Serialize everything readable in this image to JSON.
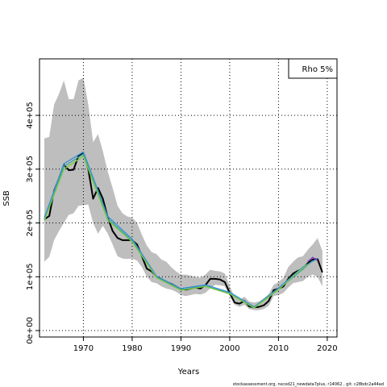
{
  "chart_data": {
    "type": "line",
    "xlabel": "Years",
    "ylabel": "SSB",
    "xlim": [
      1961,
      2022
    ],
    "ylim": [
      -12000,
      505000
    ],
    "grid": true,
    "x_ticks": [
      1970,
      1980,
      1990,
      2000,
      2010,
      2020
    ],
    "x_tick_labels": [
      "1970",
      "1980",
      "1990",
      "2000",
      "2010",
      "2020"
    ],
    "y_ticks": [
      0,
      100000,
      200000,
      300000,
      400000
    ],
    "y_tick_labels": [
      "0e+00",
      "1e+05",
      "2e+05",
      "3e+05",
      "4e+05"
    ],
    "legend": {
      "text": "Rho 5%",
      "placement": "top-right"
    },
    "footnote": "stockassessment.org, nscod21_newdata7plus, r14062 , git: c28bdc2a44ad",
    "band_color": "#bebebe",
    "confidence_band": {
      "x": [
        1962,
        1963,
        1964,
        1965,
        1966,
        1967,
        1968,
        1969,
        1970,
        1971,
        1972,
        1973,
        1974,
        1975,
        1976,
        1977,
        1978,
        1979,
        1980,
        1981,
        1982,
        1983,
        1984,
        1985,
        1986,
        1987,
        1988,
        1989,
        1990,
        1991,
        1992,
        1993,
        1994,
        1995,
        1996,
        1997,
        1998,
        1999,
        2000,
        2001,
        2002,
        2003,
        2004,
        2005,
        2006,
        2007,
        2008,
        2009,
        2010,
        2011,
        2012,
        2013,
        2014,
        2015,
        2016,
        2017,
        2018,
        2019
      ],
      "lower": [
        128000,
        137000,
        168000,
        185000,
        200000,
        215000,
        218000,
        232000,
        233000,
        234000,
        200000,
        180000,
        195000,
        180000,
        160000,
        138000,
        134000,
        133000,
        134000,
        130000,
        118000,
        100000,
        90000,
        88000,
        82000,
        78000,
        76000,
        72000,
        66000,
        64000,
        66000,
        68000,
        67000,
        70000,
        78000,
        85000,
        84000,
        82000,
        65000,
        48000,
        44000,
        48000,
        40000,
        38000,
        38000,
        40000,
        46000,
        64000,
        66000,
        70000,
        80000,
        88000,
        90000,
        92000,
        100000,
        104000,
        100000,
        82000
      ],
      "upper": [
        357000,
        360000,
        420000,
        440000,
        465000,
        430000,
        430000,
        465000,
        470000,
        420000,
        350000,
        365000,
        333000,
        295000,
        265000,
        232000,
        218000,
        212000,
        210000,
        200000,
        178000,
        158000,
        146000,
        142000,
        132000,
        128000,
        118000,
        110000,
        104000,
        104000,
        102000,
        100000,
        98000,
        104000,
        113000,
        111000,
        110000,
        106000,
        82000,
        62000,
        57000,
        63000,
        54000,
        52000,
        54000,
        60000,
        68000,
        85000,
        90000,
        98000,
        118000,
        128000,
        136000,
        138000,
        150000,
        160000,
        172000,
        148000
      ]
    },
    "series": [
      {
        "color": "#000000",
        "x": [
          1962,
          1963,
          1964,
          1965,
          1966,
          1967,
          1968,
          1969,
          1970,
          1971,
          1972,
          1973,
          1974,
          1975,
          1976,
          1977,
          1978,
          1979,
          1980,
          1981,
          1982,
          1983,
          1984,
          1985,
          1986,
          1987,
          1988,
          1989,
          1990,
          1991,
          1992,
          1993,
          1994,
          1995,
          1996,
          1997,
          1998,
          1999,
          2000,
          2001,
          2002,
          2003,
          2004,
          2005,
          2006,
          2007,
          2008,
          2009,
          2010,
          2011,
          2012,
          2013,
          2014,
          2015,
          2016,
          2017,
          2018,
          2019
        ],
        "values": [
          207000,
          213000,
          260000,
          283000,
          308000,
          298000,
          299000,
          325000,
          330000,
          300000,
          245000,
          265000,
          245000,
          210000,
          185000,
          172000,
          168000,
          168000,
          168000,
          160000,
          138000,
          115000,
          110000,
          100000,
          96000,
          90000,
          87000,
          82000,
          77000,
          76000,
          78000,
          80000,
          78000,
          84000,
          96000,
          96000,
          95000,
          90000,
          70000,
          52000,
          50000,
          55000,
          45000,
          43000,
          44000,
          47000,
          55000,
          75000,
          78000,
          82000,
          96000,
          106000,
          111000,
          115000,
          125000,
          132000,
          133000,
          108000
        ]
      },
      {
        "color": "#3a8fd4",
        "x": [
          1962,
          1966,
          1970,
          1975,
          1980,
          1985,
          1990,
          1995,
          2000,
          2005,
          2010,
          2015,
          2018
        ],
        "values": [
          210000,
          310000,
          332000,
          212000,
          170000,
          101000,
          78000,
          85000,
          71000,
          44000,
          79000,
          118000,
          134000
        ]
      },
      {
        "color": "#3aa5a0",
        "x": [
          1962,
          1966,
          1970,
          1975,
          1980,
          1985,
          1990,
          1995,
          2000,
          2005,
          2010,
          2015,
          2017
        ],
        "values": [
          206000,
          305000,
          328000,
          208000,
          167000,
          99000,
          76000,
          83000,
          69000,
          43000,
          77000,
          114000,
          130000
        ]
      },
      {
        "color": "#7ac943",
        "x": [
          1962,
          1966,
          1970,
          1975,
          1980,
          1985,
          1990,
          1995,
          2000,
          2005,
          2010,
          2014,
          2016
        ],
        "values": [
          204000,
          300000,
          324000,
          205000,
          165000,
          98000,
          75000,
          82000,
          68000,
          42000,
          76000,
          109000,
          123000
        ]
      },
      {
        "color": "#7b2fbe",
        "x": [
          2016,
          2017,
          2018
        ],
        "values": [
          128000,
          136000,
          130000
        ]
      }
    ]
  }
}
